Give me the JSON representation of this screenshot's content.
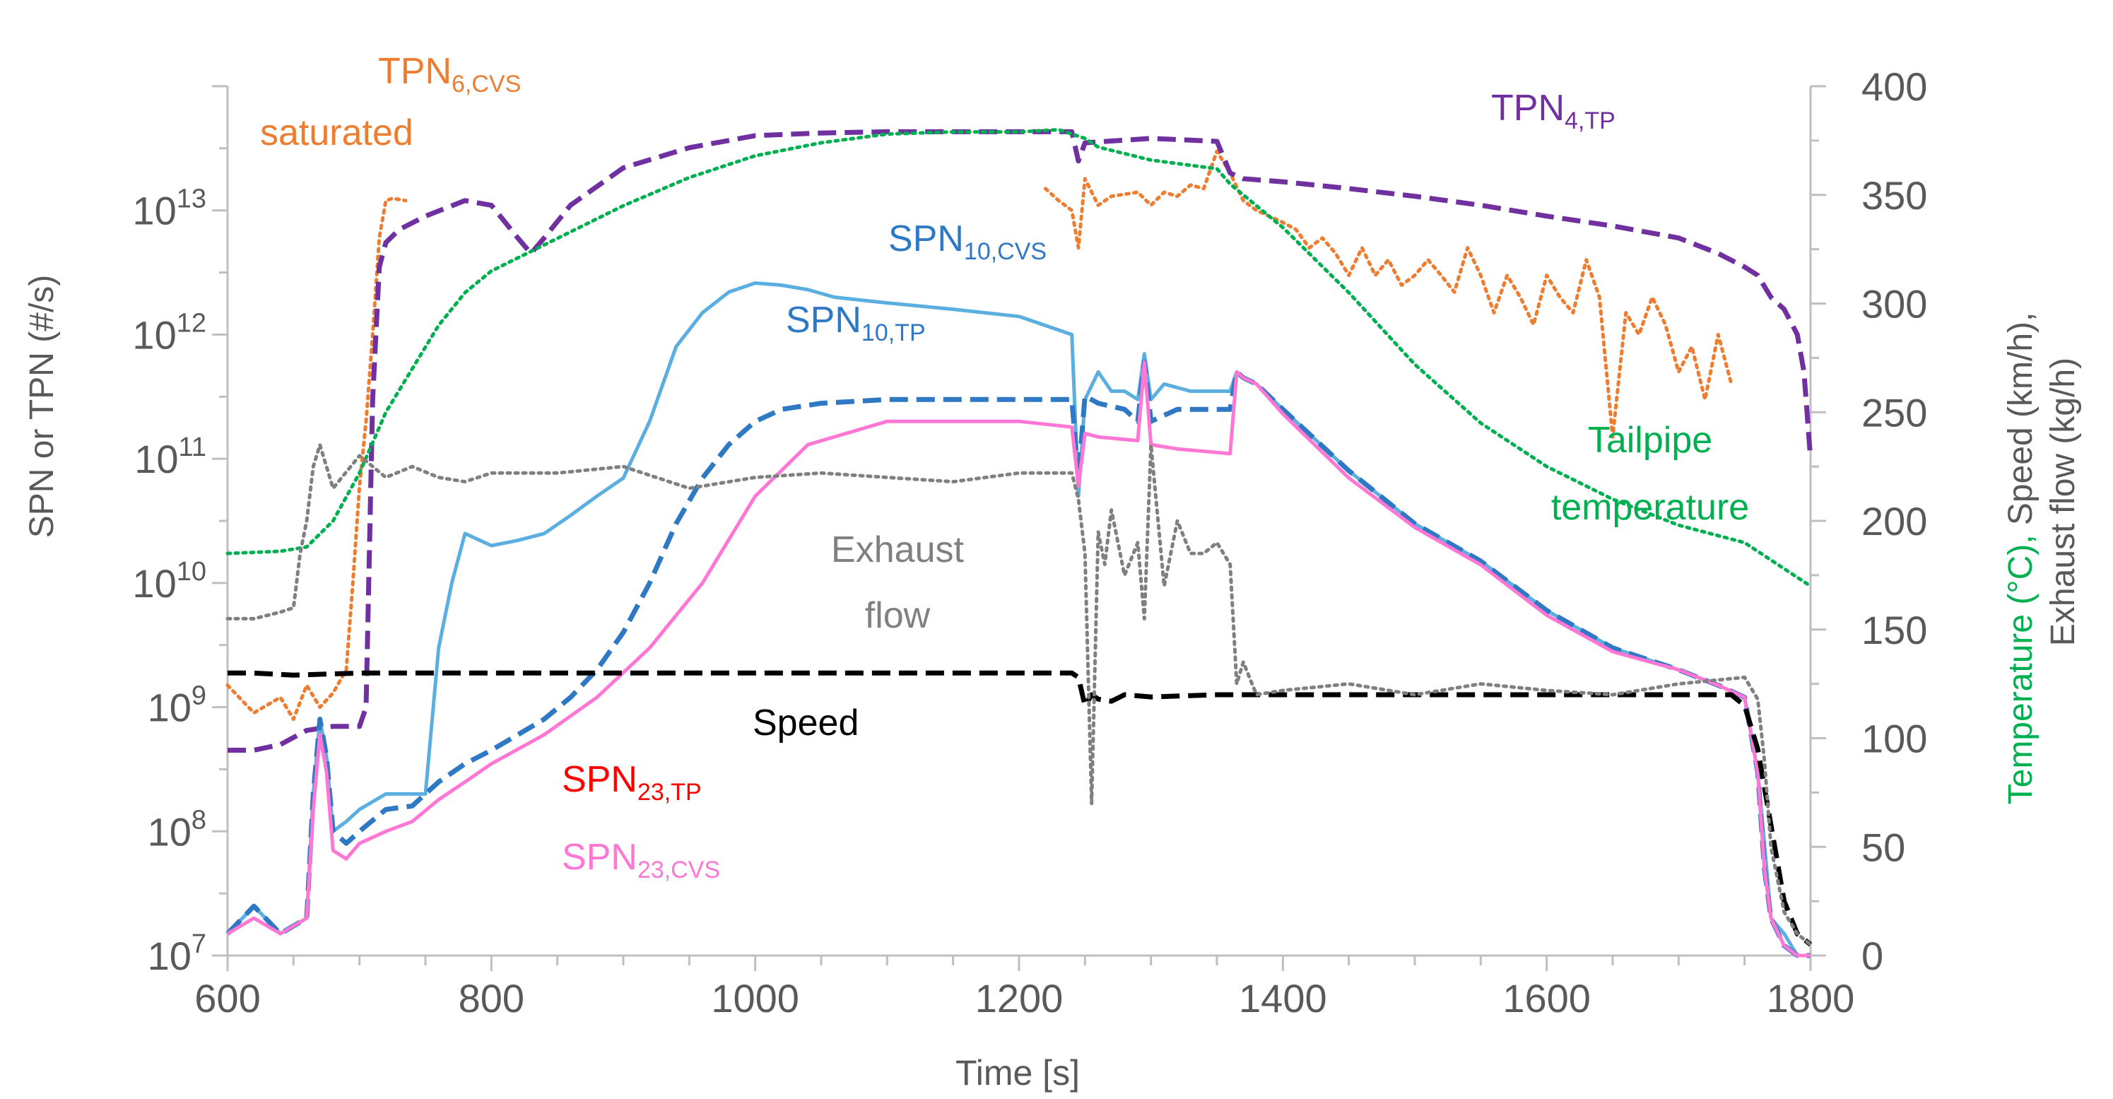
{
  "chart_data": {
    "type": "line",
    "x_axis": {
      "label": "Time [s]",
      "range": [
        600,
        1800
      ],
      "ticks": [
        600,
        800,
        1000,
        1200,
        1400,
        1600,
        1800
      ],
      "tick_labels": [
        "600",
        "800",
        "1000",
        "1200",
        "1400",
        "1600",
        "1800"
      ]
    },
    "y_left": {
      "label": "SPN or TPN (#/s)",
      "scale": "log",
      "range": [
        10000000,
        100000000000000
      ],
      "ticks": [
        {
          "base": "10",
          "exp": "7"
        },
        {
          "base": "10",
          "exp": "8"
        },
        {
          "base": "10",
          "exp": "9"
        },
        {
          "base": "10",
          "exp": "10"
        },
        {
          "base": "10",
          "exp": "11"
        },
        {
          "base": "10",
          "exp": "12"
        },
        {
          "base": "10",
          "exp": "13"
        }
      ]
    },
    "y_right": {
      "label_parts": [
        {
          "text": "Temperature (°C),",
          "color": "#00b050"
        },
        {
          "text": " Speed (km/h),",
          "color": "#595959"
        }
      ],
      "label_line2": "Exhaust flow (kg/h)",
      "range": [
        0,
        400
      ],
      "ticks": [
        0,
        50,
        100,
        150,
        200,
        250,
        300,
        350,
        400
      ],
      "tick_labels": [
        "0",
        "50",
        "100",
        "150",
        "200",
        "250",
        "300",
        "350",
        "400"
      ]
    },
    "grid": false,
    "series": [
      {
        "name": "TPN6,CVS",
        "label_main": "TPN",
        "label_sub": "6,CVS",
        "axis": "left",
        "color": "#ed7d31",
        "style": "dotted",
        "x": [
          600,
          620,
          640,
          650,
          660,
          670,
          680,
          690,
          695,
          700,
          705,
          710,
          715,
          720,
          725,
          735
        ],
        "y": [
          1500000000.0,
          900000000.0,
          1200000000.0,
          800000000.0,
          1500000000.0,
          1000000000.0,
          1300000000.0,
          2000000000.0,
          10000000000.0,
          60000000000.0,
          200000000000.0,
          1000000000000.0,
          6000000000000.0,
          12000000000000.0,
          12500000000000.0,
          12000000000000.0
        ]
      },
      {
        "name": "TPN6,CVS",
        "label_main": "",
        "label_sub": "",
        "axis": "left",
        "color": "#ed7d31",
        "style": "dotted",
        "x": [
          1220,
          1230,
          1240,
          1245,
          1250,
          1260,
          1270,
          1290,
          1300,
          1310,
          1320,
          1330,
          1340,
          1350,
          1360,
          1370,
          1380,
          1400,
          1410,
          1420,
          1430,
          1440,
          1450,
          1460,
          1470,
          1480,
          1490,
          1500,
          1510,
          1520,
          1530,
          1540,
          1550,
          1560,
          1570,
          1580,
          1590,
          1600,
          1610,
          1620,
          1630,
          1640,
          1650,
          1660,
          1670,
          1680,
          1690,
          1700,
          1710,
          1720,
          1730,
          1740
        ],
        "y": [
          15000000000000.0,
          12000000000000.0,
          10000000000000.0,
          5000000000000.0,
          18000000000000.0,
          11000000000000.0,
          13000000000000.0,
          14000000000000.0,
          11000000000000.0,
          14000000000000.0,
          13000000000000.0,
          16000000000000.0,
          15000000000000.0,
          30000000000000.0,
          20000000000000.0,
          12000000000000.0,
          10000000000000.0,
          8000000000000.0,
          7000000000000.0,
          5000000000000.0,
          6000000000000.0,
          4500000000000.0,
          3000000000000.0,
          5000000000000.0,
          3000000000000.0,
          4000000000000.0,
          2500000000000.0,
          3000000000000.0,
          4000000000000.0,
          3000000000000.0,
          2200000000000.0,
          5000000000000.0,
          3000000000000.0,
          1500000000000.0,
          3000000000000.0,
          2000000000000.0,
          1200000000000.0,
          3000000000000.0,
          2000000000000.0,
          1500000000000.0,
          4000000000000.0,
          2000000000000.0,
          150000000000.0,
          1500000000000.0,
          1000000000000.0,
          2000000000000.0,
          1200000000000.0,
          500000000000.0,
          800000000000.0,
          300000000000.0,
          1000000000000.0,
          400000000000.0
        ]
      },
      {
        "name": "TPN4,TP",
        "label_main": "TPN",
        "label_sub": "4,TP",
        "axis": "left",
        "color": "#7030a0",
        "style": "dashed",
        "x": [
          600,
          620,
          640,
          660,
          680,
          700,
          705,
          710,
          715,
          720,
          730,
          750,
          780,
          800,
          820,
          830,
          840,
          860,
          900,
          950,
          1000,
          1050,
          1100,
          1150,
          1200,
          1230,
          1240,
          1245,
          1250,
          1300,
          1350,
          1360,
          1370,
          1400,
          1450,
          1500,
          1550,
          1600,
          1650,
          1700,
          1730,
          1750,
          1760,
          1770,
          1780,
          1790,
          1795,
          1800
        ],
        "y": [
          450000000.0,
          450000000.0,
          500000000.0,
          650000000.0,
          700000000.0,
          700000000.0,
          1000000000.0,
          300000000000.0,
          3500000000000.0,
          5500000000000.0,
          7000000000000.0,
          9000000000000.0,
          12000000000000.0,
          11000000000000.0,
          6000000000000.0,
          4500000000000.0,
          6000000000000.0,
          11000000000000.0,
          22000000000000.0,
          32000000000000.0,
          40000000000000.0,
          42000000000000.0,
          43000000000000.0,
          43000000000000.0,
          43000000000000.0,
          43000000000000.0,
          43000000000000.0,
          25000000000000.0,
          35000000000000.0,
          38000000000000.0,
          36000000000000.0,
          20000000000000.0,
          18000000000000.0,
          17000000000000.0,
          15000000000000.0,
          13000000000000.0,
          11000000000000.0,
          9000000000000.0,
          7500000000000.0,
          6000000000000.0,
          4500000000000.0,
          3500000000000.0,
          3000000000000.0,
          2000000000000.0,
          1600000000000.0,
          1000000000000.0,
          500000000000.0,
          100000000000.0
        ]
      },
      {
        "name": "SPN10,CVS",
        "label_main": "SPN",
        "label_sub": "10,CVS",
        "axis": "left",
        "color": "#5aaee0",
        "style": "solid",
        "x": [
          600,
          620,
          640,
          660,
          665,
          670,
          675,
          680,
          690,
          700,
          720,
          740,
          750,
          760,
          770,
          780,
          800,
          820,
          840,
          860,
          880,
          900,
          920,
          940,
          960,
          980,
          1000,
          1020,
          1040,
          1060,
          1100,
          1150,
          1200,
          1240,
          1245,
          1250,
          1260,
          1270,
          1280,
          1290,
          1295,
          1300,
          1310,
          1330,
          1350,
          1360,
          1365,
          1370,
          1380,
          1400,
          1450,
          1500,
          1550,
          1600,
          1650,
          1700,
          1730,
          1750,
          1760,
          1765,
          1770,
          1780,
          1790,
          1800
        ],
        "y": [
          15000000.0,
          25000000.0,
          15000000.0,
          20000000.0,
          200000000.0,
          800000000.0,
          400000000.0,
          100000000.0,
          120000000.0,
          150000000.0,
          200000000.0,
          200000000.0,
          200000000.0,
          3000000000.0,
          10000000000.0,
          25000000000.0,
          20000000000.0,
          22000000000.0,
          25000000000.0,
          35000000000.0,
          50000000000.0,
          70000000000.0,
          200000000000.0,
          800000000000.0,
          1500000000000.0,
          2200000000000.0,
          2600000000000.0,
          2500000000000.0,
          2300000000000.0,
          2000000000000.0,
          1800000000000.0,
          1600000000000.0,
          1400000000000.0,
          1000000000000.0,
          50000000000.0,
          300000000000.0,
          500000000000.0,
          350000000000.0,
          350000000000.0,
          300000000000.0,
          700000000000.0,
          300000000000.0,
          400000000000.0,
          350000000000.0,
          350000000000.0,
          350000000000.0,
          500000000000.0,
          450000000000.0,
          400000000000.0,
          250000000000.0,
          80000000000.0,
          30000000000.0,
          15000000000.0,
          6000000000.0,
          3000000000.0,
          2000000000.0,
          1500000000.0,
          1200000000.0,
          300000000.0,
          80000000.0,
          20000000.0,
          15000000.0,
          10000000.0,
          10000000.0
        ]
      },
      {
        "name": "SPN10,TP",
        "label_main": "SPN",
        "label_sub": "10,TP",
        "axis": "left",
        "color": "#2f78c4",
        "style": "dashed",
        "x": [
          600,
          620,
          640,
          660,
          665,
          670,
          675,
          680,
          690,
          700,
          720,
          740,
          760,
          780,
          800,
          820,
          840,
          860,
          880,
          900,
          920,
          940,
          960,
          980,
          1000,
          1020,
          1050,
          1100,
          1150,
          1200,
          1240,
          1245,
          1250,
          1260,
          1280,
          1290,
          1295,
          1300,
          1320,
          1350,
          1360,
          1365,
          1370,
          1380,
          1400,
          1450,
          1500,
          1550,
          1600,
          1650,
          1700,
          1730,
          1750,
          1760,
          1765,
          1770,
          1780,
          1790,
          1800
        ],
        "y": [
          15000000.0,
          25000000.0,
          15000000.0,
          20000000.0,
          200000000.0,
          800000000.0,
          400000000.0,
          100000000.0,
          80000000.0,
          100000000.0,
          150000000.0,
          160000000.0,
          250000000.0,
          350000000.0,
          450000000.0,
          600000000.0,
          800000000.0,
          1200000000.0,
          2000000000.0,
          4000000000.0,
          10000000000.0,
          30000000000.0,
          70000000000.0,
          130000000000.0,
          200000000000.0,
          250000000000.0,
          280000000000.0,
          300000000000.0,
          300000000000.0,
          300000000000.0,
          300000000000.0,
          70000000000.0,
          320000000000.0,
          280000000000.0,
          250000000000.0,
          200000000000.0,
          600000000000.0,
          200000000000.0,
          250000000000.0,
          250000000000.0,
          250000000000.0,
          500000000000.0,
          450000000000.0,
          400000000000.0,
          250000000000.0,
          80000000000.0,
          30000000000.0,
          15000000000.0,
          6000000000.0,
          3000000000.0,
          2000000000.0,
          1500000000.0,
          1200000000.0,
          300000000.0,
          50000000.0,
          20000000.0,
          12000000.0,
          10000000.0,
          10000000.0
        ]
      },
      {
        "name": "SPN23,TP",
        "label_main": "SPN",
        "label_sub": "23,TP",
        "axis": "left",
        "color": "#ff0000",
        "style": "solid",
        "x": [],
        "y": []
      },
      {
        "name": "SPN23,CVS",
        "label_main": "SPN",
        "label_sub": "23,CVS",
        "axis": "left",
        "color": "#ff77d4",
        "style": "solid",
        "x": [
          600,
          620,
          640,
          660,
          665,
          670,
          675,
          680,
          690,
          700,
          720,
          740,
          760,
          780,
          800,
          840,
          880,
          920,
          960,
          1000,
          1040,
          1100,
          1150,
          1200,
          1240,
          1245,
          1250,
          1260,
          1290,
          1295,
          1300,
          1320,
          1360,
          1365,
          1370,
          1380,
          1400,
          1450,
          1500,
          1550,
          1600,
          1650,
          1700,
          1730,
          1750,
          1760,
          1765,
          1770,
          1780,
          1790,
          1800
        ],
        "y": [
          15000000.0,
          20000000.0,
          15000000.0,
          20000000.0,
          150000000.0,
          600000000.0,
          300000000.0,
          70000000.0,
          60000000.0,
          80000000.0,
          100000000.0,
          120000000.0,
          180000000.0,
          250000000.0,
          350000000.0,
          600000000.0,
          1200000000.0,
          3000000000.0,
          10000000000.0,
          50000000000.0,
          130000000000.0,
          200000000000.0,
          200000000000.0,
          200000000000.0,
          180000000000.0,
          60000000000.0,
          160000000000.0,
          150000000000.0,
          140000000000.0,
          600000000000.0,
          130000000000.0,
          120000000000.0,
          110000000000.0,
          500000000000.0,
          450000000000.0,
          400000000000.0,
          230000000000.0,
          70000000000.0,
          28000000000.0,
          14000000000.0,
          5500000000.0,
          2800000000.0,
          2000000000.0,
          1500000000.0,
          1200000000.0,
          300000000.0,
          50000000.0,
          20000000.0,
          12000000.0,
          10000000.0,
          10000000.0
        ]
      },
      {
        "name": "Tailpipe temperature",
        "label_main": "Tailpipe",
        "label_sub": "temperature",
        "axis": "right",
        "color": "#00b050",
        "style": "dotted",
        "x": [
          600,
          640,
          660,
          680,
          700,
          720,
          740,
          760,
          780,
          800,
          850,
          900,
          950,
          1000,
          1050,
          1100,
          1150,
          1200,
          1230,
          1250,
          1260,
          1300,
          1350,
          1360,
          1380,
          1400,
          1450,
          1500,
          1550,
          1600,
          1650,
          1700,
          1750,
          1800
        ],
        "y": [
          185,
          186,
          188,
          200,
          222,
          250,
          270,
          290,
          305,
          315,
          330,
          345,
          358,
          368,
          374,
          378,
          379,
          379,
          380,
          376,
          372,
          366,
          362,
          355,
          345,
          335,
          305,
          272,
          245,
          225,
          210,
          198,
          190,
          170
        ]
      },
      {
        "name": "Speed",
        "label_main": "Speed",
        "label_sub": "",
        "axis": "right",
        "color": "#000000",
        "style": "dashed",
        "x": [
          600,
          620,
          650,
          700,
          750,
          800,
          900,
          1000,
          1100,
          1200,
          1240,
          1245,
          1250,
          1255,
          1260,
          1270,
          1280,
          1300,
          1350,
          1400,
          1500,
          1600,
          1700,
          1740,
          1750,
          1760,
          1770,
          1780,
          1790,
          1800
        ],
        "y": [
          130,
          130,
          129,
          130,
          130,
          130,
          130,
          130,
          130,
          130,
          130,
          128,
          115,
          120,
          118,
          117,
          120,
          119,
          120,
          120,
          120,
          120,
          120,
          120,
          115,
          95,
          60,
          25,
          10,
          5
        ]
      },
      {
        "name": "Exhaust flow",
        "label_main": "Exhaust",
        "label_sub": "flow",
        "axis": "right",
        "color": "#808080",
        "style": "dotted",
        "x": [
          600,
          620,
          640,
          650,
          655,
          660,
          665,
          670,
          680,
          700,
          720,
          740,
          760,
          780,
          800,
          850,
          900,
          950,
          1000,
          1050,
          1100,
          1150,
          1200,
          1240,
          1245,
          1250,
          1255,
          1260,
          1265,
          1270,
          1280,
          1290,
          1295,
          1300,
          1310,
          1320,
          1330,
          1340,
          1350,
          1360,
          1365,
          1370,
          1380,
          1400,
          1450,
          1500,
          1550,
          1600,
          1650,
          1700,
          1750,
          1760,
          1765,
          1770,
          1780,
          1790,
          1800
        ],
        "y": [
          155,
          155,
          158,
          160,
          185,
          200,
          225,
          235,
          215,
          230,
          220,
          225,
          220,
          218,
          222,
          222,
          225,
          215,
          220,
          222,
          220,
          218,
          222,
          222,
          210,
          185,
          70,
          195,
          180,
          205,
          175,
          190,
          155,
          235,
          170,
          200,
          185,
          185,
          190,
          180,
          125,
          135,
          120,
          122,
          125,
          120,
          125,
          122,
          120,
          125,
          128,
          118,
          90,
          50,
          20,
          10,
          5
        ]
      }
    ],
    "annotations": [
      {
        "text": "saturated",
        "color": "#ed7d31"
      }
    ]
  }
}
